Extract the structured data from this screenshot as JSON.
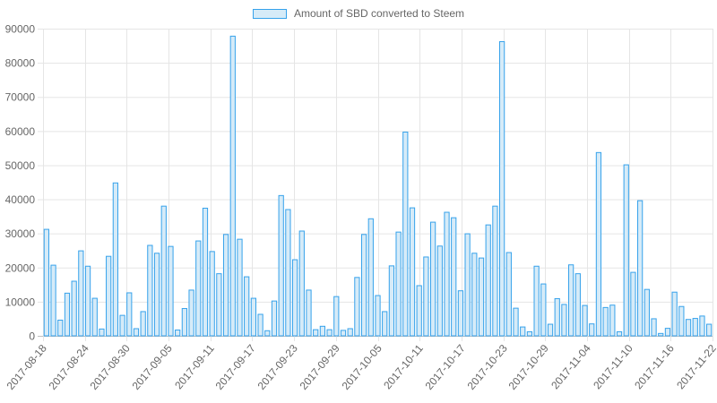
{
  "chart_data": {
    "type": "bar",
    "legend": {
      "label": "Amount of SBD converted to Steem",
      "placement": "top-center"
    },
    "colors": {
      "bar_fill": "#d6ebf8",
      "bar_stroke": "#36a2eb",
      "grid": "#e5e5e5",
      "axis_line": "#bfbfbf",
      "tick_text": "#666666"
    },
    "ylim": [
      0,
      90000
    ],
    "y_ticks": [
      "0",
      "10000",
      "20000",
      "30000",
      "40000",
      "50000",
      "60000",
      "70000",
      "80000",
      "90000"
    ],
    "x_tick_labels": [
      "2017-08-18",
      "2017-08-24",
      "2017-08-30",
      "2017-09-05",
      "2017-09-11",
      "2017-09-17",
      "2017-09-23",
      "2017-09-29",
      "2017-10-05",
      "2017-10-11",
      "2017-10-17",
      "2017-10-23",
      "2017-10-29",
      "2017-11-04",
      "2017-11-10",
      "2017-11-16",
      "2017-11-22"
    ],
    "start_date": "2017-08-18",
    "end_date": "2017-11-22",
    "grid": true,
    "values": [
      31200,
      20700,
      4600,
      12500,
      16000,
      24900,
      20400,
      11000,
      2000,
      23300,
      44800,
      6000,
      12600,
      2100,
      7100,
      26500,
      24200,
      38000,
      26200,
      1700,
      8000,
      13400,
      27800,
      37400,
      24700,
      18200,
      29700,
      87800,
      28300,
      17300,
      11000,
      6300,
      1500,
      10200,
      41100,
      37000,
      22300,
      30700,
      13400,
      1800,
      2800,
      1800,
      11500,
      1600,
      2100,
      17100,
      29700,
      34300,
      11800,
      7100,
      20500,
      30400,
      59700,
      37500,
      14700,
      23100,
      33300,
      26300,
      36200,
      34600,
      13200,
      29900,
      24200,
      22800,
      32500,
      38000,
      86200,
      24400,
      8100,
      2600,
      1200,
      20400,
      15200,
      3400,
      10900,
      9200,
      20800,
      18200,
      8900,
      3500,
      53700,
      8300,
      9000,
      1200,
      50100,
      18600,
      39600,
      13600,
      5000,
      700,
      2200,
      12800,
      8600,
      4800,
      5100,
      5800,
      3400
    ]
  }
}
